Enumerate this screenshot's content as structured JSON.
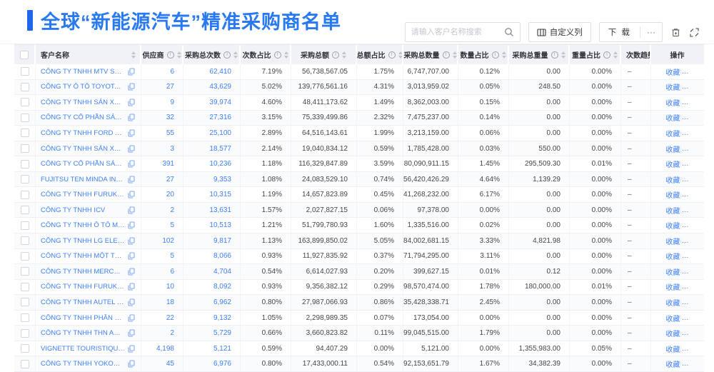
{
  "page_title": "全球“新能源汽车”精准采购商名单",
  "toolbar": {
    "search_placeholder": "请输入客户名称搜索",
    "customize_columns_label": "自定义列",
    "download_label": "下 载",
    "more_label": "···"
  },
  "icons": {
    "info": "i",
    "trend_dash": "–"
  },
  "table": {
    "columns": [
      {
        "label": "客户名称",
        "info": false,
        "sort": true
      },
      {
        "label": "供应商",
        "info": true,
        "sort": true
      },
      {
        "label": "采购总次数",
        "info": true,
        "sort": true
      },
      {
        "label": "次数占比",
        "info": true,
        "sort": true
      },
      {
        "label": "采购总额",
        "info": true,
        "sort": true
      },
      {
        "label": "总额占比",
        "info": true,
        "sort": true
      },
      {
        "label": "采购总数量",
        "info": true,
        "sort": true
      },
      {
        "label": "数量占比",
        "info": true,
        "sort": true
      },
      {
        "label": "采购总重量",
        "info": true,
        "sort": true
      },
      {
        "label": "重量占比",
        "info": true,
        "sort": true
      },
      {
        "label": "次数趋势",
        "info": false,
        "sort": false
      },
      {
        "label": "操作",
        "info": false,
        "sort": false
      }
    ],
    "action_labels": {
      "favorite": "收藏",
      "more": "…"
    },
    "rows": [
      {
        "name": "CÔNG TY TNHH MTV SẢN XUẤ...",
        "supplier": "6",
        "times": "62,410",
        "times_pct": "7.19%",
        "amount": "56,738,567.05",
        "amount_pct": "1.75%",
        "qty": "6,747,707.00",
        "qty_pct": "0.12%",
        "weight": "0.00",
        "weight_pct": "0.00%",
        "trend": "–"
      },
      {
        "name": "CÔNG TY Ô TÔ TOYOTA VIỆT ...",
        "supplier": "27",
        "times": "43,629",
        "times_pct": "5.02%",
        "amount": "139,776,561.16",
        "amount_pct": "4.31%",
        "qty": "3,013,959.02",
        "qty_pct": "0.05%",
        "weight": "248.50",
        "weight_pct": "0.00%",
        "trend": "–"
      },
      {
        "name": "CÔNG TY TNHH SẢN XUẤT VÀ ...",
        "supplier": "9",
        "times": "39,974",
        "times_pct": "4.60%",
        "amount": "48,411,173.62",
        "amount_pct": "1.49%",
        "qty": "8,362,003.00",
        "qty_pct": "0.15%",
        "weight": "0.00",
        "weight_pct": "0.00%",
        "trend": "–"
      },
      {
        "name": "CÔNG TY CỔ PHẦN SẢN XUẤT...",
        "supplier": "32",
        "times": "27,316",
        "times_pct": "3.15%",
        "amount": "75,339,499.86",
        "amount_pct": "2.32%",
        "qty": "7,475,237.00",
        "qty_pct": "0.14%",
        "weight": "0.00",
        "weight_pct": "0.00%",
        "trend": "–"
      },
      {
        "name": "CÔNG TY TNHH FORD VIỆT NAM",
        "supplier": "55",
        "times": "25,100",
        "times_pct": "2.89%",
        "amount": "64,516,143.61",
        "amount_pct": "1.99%",
        "qty": "3,213,159.00",
        "qty_pct": "0.06%",
        "weight": "0.00",
        "weight_pct": "0.00%",
        "trend": "–"
      },
      {
        "name": "CÔNG TY TNHH SẢN XUẤT VÀ ...",
        "supplier": "3",
        "times": "18,577",
        "times_pct": "2.14%",
        "amount": "19,040,834.12",
        "amount_pct": "0.59%",
        "qty": "1,785,428.00",
        "qty_pct": "0.03%",
        "weight": "550.00",
        "weight_pct": "0.00%",
        "trend": "–"
      },
      {
        "name": "CÔNG TY CỔ PHẦN SẢN XUẤT...",
        "supplier": "391",
        "times": "10,236",
        "times_pct": "1.18%",
        "amount": "116,329,847.89",
        "amount_pct": "3.59%",
        "qty": "80,090,911.15",
        "qty_pct": "1.45%",
        "weight": "295,509.30",
        "weight_pct": "0.01%",
        "trend": "–"
      },
      {
        "name": "FUJITSU TEN MINDA INDIA PVT...",
        "supplier": "27",
        "times": "9,353",
        "times_pct": "1.08%",
        "amount": "24,083,529.10",
        "amount_pct": "0.74%",
        "qty": "256,420,426.29",
        "qty_pct": "4.64%",
        "weight": "1,139.29",
        "weight_pct": "0.00%",
        "trend": "–"
      },
      {
        "name": "CÔNG TY TNHH FURUKAWA A...",
        "supplier": "20",
        "times": "10,315",
        "times_pct": "1.19%",
        "amount": "14,657,823.89",
        "amount_pct": "0.45%",
        "qty": "341,268,232.00",
        "qty_pct": "6.17%",
        "weight": "0.00",
        "weight_pct": "0.00%",
        "trend": "–"
      },
      {
        "name": "CÔNG TY TNHH ICV",
        "supplier": "2",
        "times": "13,631",
        "times_pct": "1.57%",
        "amount": "2,027,827.15",
        "amount_pct": "0.06%",
        "qty": "97,378.00",
        "qty_pct": "0.00%",
        "weight": "0.00",
        "weight_pct": "0.00%",
        "trend": "–"
      },
      {
        "name": "CÔNG TY TNHH Ô TÔ MITSUBI...",
        "supplier": "5",
        "times": "10,513",
        "times_pct": "1.21%",
        "amount": "51,799,780.93",
        "amount_pct": "1.60%",
        "qty": "1,335,516.00",
        "qty_pct": "0.02%",
        "weight": "0.00",
        "weight_pct": "0.00%",
        "trend": "–"
      },
      {
        "name": "CÔNG TY TNHH LG ELECTRON...",
        "supplier": "102",
        "times": "9,817",
        "times_pct": "1.13%",
        "amount": "163,899,850.02",
        "amount_pct": "5.05%",
        "qty": "184,002,681.15",
        "qty_pct": "3.33%",
        "weight": "4,821.98",
        "weight_pct": "0.00%",
        "trend": "–"
      },
      {
        "name": "CÔNG TY TNHH MỘT THÀNH V...",
        "supplier": "5",
        "times": "8,066",
        "times_pct": "0.93%",
        "amount": "11,927,835.92",
        "amount_pct": "0.37%",
        "qty": "171,794,295.00",
        "qty_pct": "3.11%",
        "weight": "0.00",
        "weight_pct": "0.00%",
        "trend": "–"
      },
      {
        "name": "CÔNG TY TNHH MERCEDES–B...",
        "supplier": "6",
        "times": "4,704",
        "times_pct": "0.54%",
        "amount": "6,614,027.93",
        "amount_pct": "0.20%",
        "qty": "399,627.15",
        "qty_pct": "0.01%",
        "weight": "0.12",
        "weight_pct": "0.00%",
        "trend": "–"
      },
      {
        "name": "CÔNG TY TNHH FURUKAWA A...",
        "supplier": "10",
        "times": "8,092",
        "times_pct": "0.93%",
        "amount": "9,356,382.12",
        "amount_pct": "0.29%",
        "qty": "98,570,474.00",
        "qty_pct": "1.78%",
        "weight": "180,000.00",
        "weight_pct": "0.01%",
        "trend": "–"
      },
      {
        "name": "CÔNG TY TNHH AUTEL VIỆT N...",
        "supplier": "18",
        "times": "6,962",
        "times_pct": "0.80%",
        "amount": "27,987,066.93",
        "amount_pct": "0.86%",
        "qty": "135,428,338.71",
        "qty_pct": "2.45%",
        "weight": "0.00",
        "weight_pct": "0.00%",
        "trend": "–"
      },
      {
        "name": "CÔNG TY TNHH PHÂN PHỐI T...",
        "supplier": "22",
        "times": "9,132",
        "times_pct": "1.05%",
        "amount": "2,298,989.35",
        "amount_pct": "0.07%",
        "qty": "173,054.00",
        "qty_pct": "0.00%",
        "weight": "0.00",
        "weight_pct": "0.00%",
        "trend": "–"
      },
      {
        "name": "CÔNG TY TNHH THN AUTOPAR...",
        "supplier": "2",
        "times": "5,729",
        "times_pct": "0.66%",
        "amount": "3,660,823.82",
        "amount_pct": "0.11%",
        "qty": "99,045,515.00",
        "qty_pct": "1.79%",
        "weight": "0.00",
        "weight_pct": "0.00%",
        "trend": "–"
      },
      {
        "name": "VIGNETTE TOURISTIQUE G UNI...",
        "supplier": "4,198",
        "times": "5,121",
        "times_pct": "0.59%",
        "amount": "94,407.29",
        "amount_pct": "0.00%",
        "qty": "5,121.00",
        "qty_pct": "0.00%",
        "weight": "1,355,983.00",
        "weight_pct": "0.05%",
        "trend": "–"
      },
      {
        "name": "CÔNG TY TNHH YOKOWO VIỆT...",
        "supplier": "45",
        "times": "6,976",
        "times_pct": "0.80%",
        "amount": "17,433,000.11",
        "amount_pct": "0.54%",
        "qty": "92,153,651.79",
        "qty_pct": "1.67%",
        "weight": "34,382.39",
        "weight_pct": "0.00%",
        "trend": "–"
      }
    ]
  }
}
